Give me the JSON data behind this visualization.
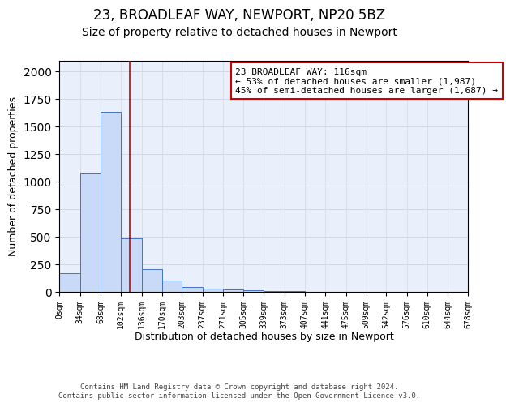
{
  "title1": "23, BROADLEAF WAY, NEWPORT, NP20 5BZ",
  "title2": "Size of property relative to detached houses in Newport",
  "xlabel": "Distribution of detached houses by size in Newport",
  "ylabel": "Number of detached properties",
  "bin_edges": [
    0,
    34,
    68,
    102,
    136,
    170,
    203,
    237,
    271,
    305,
    339,
    373,
    407,
    441,
    475,
    509,
    542,
    576,
    610,
    644,
    678
  ],
  "bar_heights": [
    165,
    1080,
    1630,
    480,
    200,
    100,
    40,
    25,
    15,
    10,
    5,
    5,
    0,
    0,
    0,
    0,
    0,
    0,
    0,
    0
  ],
  "bar_color": "#c9daf8",
  "bar_edge_color": "#4472c4",
  "grid_color": "#d0d8e8",
  "bg_color": "#eaf0fb",
  "fig_color": "#ffffff",
  "red_line_x": 116,
  "red_line_color": "#cc0000",
  "annotation_text": "23 BROADLEAF WAY: 116sqm\n← 53% of detached houses are smaller (1,987)\n45% of semi-detached houses are larger (1,687) →",
  "annotation_box_color": "#ffffff",
  "annotation_border_color": "#cc0000",
  "ylim": [
    0,
    2100
  ],
  "tick_labels": [
    "0sqm",
    "34sqm",
    "68sqm",
    "102sqm",
    "136sqm",
    "170sqm",
    "203sqm",
    "237sqm",
    "271sqm",
    "305sqm",
    "339sqm",
    "373sqm",
    "407sqm",
    "441sqm",
    "475sqm",
    "509sqm",
    "542sqm",
    "576sqm",
    "610sqm",
    "644sqm",
    "678sqm"
  ],
  "footer_text": "Contains HM Land Registry data © Crown copyright and database right 2024.\nContains public sector information licensed under the Open Government Licence v3.0.",
  "title1_fontsize": 12,
  "title2_fontsize": 10,
  "ylabel_fontsize": 9,
  "xlabel_fontsize": 9,
  "tick_fontsize": 7,
  "annotation_fontsize": 8,
  "footer_fontsize": 6.5
}
